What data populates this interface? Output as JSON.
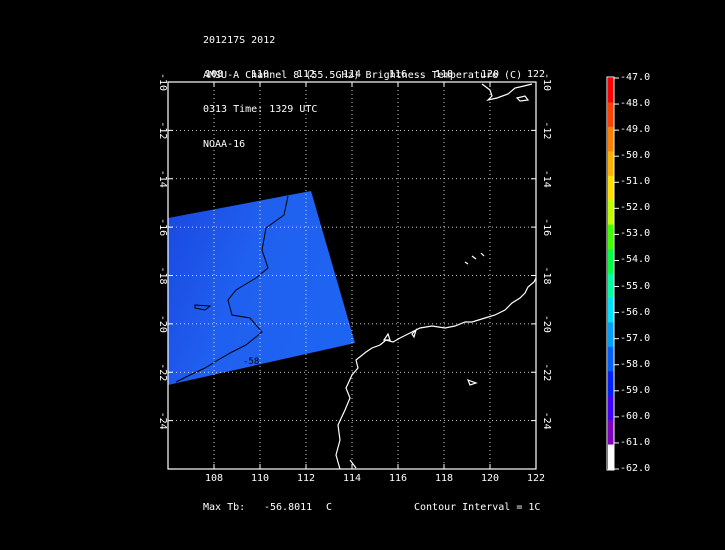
{
  "header": {
    "line1": "201217S 2012",
    "line2": "AMSU-A Channel 8 (55.5GHz) Brightness Temperature (C)",
    "line3": "0313 Time: 1329 UTC",
    "line4": "NOAA-16"
  },
  "map": {
    "lon_range": [
      106,
      122
    ],
    "lat_range": [
      -26,
      -10
    ],
    "lon_ticks": [
      "108",
      "110",
      "112",
      "114",
      "116",
      "118",
      "120",
      "122"
    ],
    "lat_ticks": [
      "-10",
      "-12",
      "-14",
      "-16",
      "-18",
      "-20",
      "-22",
      "-24"
    ],
    "contour_label": "-58",
    "swath_color": "#1f5cf0",
    "coast_color": "#ffffff"
  },
  "colorbar": {
    "labels": [
      "-47.0",
      "-48.0",
      "-49.0",
      "-50.0",
      "-51.0",
      "-52.0",
      "-53.0",
      "-54.0",
      "-55.0",
      "-56.0",
      "-57.0",
      "-58.0",
      "-59.0",
      "-60.0",
      "-61.0",
      "-62.0"
    ],
    "colors": [
      "#ff0000",
      "#ff4000",
      "#ff8000",
      "#ffb000",
      "#ffe000",
      "#c0ff00",
      "#40ff00",
      "#00ff40",
      "#00ffa0",
      "#00e0ff",
      "#00a0ff",
      "#0060ff",
      "#0020ff",
      "#4000ff",
      "#8000c0",
      "#ffffff"
    ]
  },
  "footer": {
    "max_tb_label": "Max Tb:",
    "max_tb_value": "-56.8011",
    "max_tb_unit": "C",
    "contour_interval": "Contour Interval = 1C"
  }
}
